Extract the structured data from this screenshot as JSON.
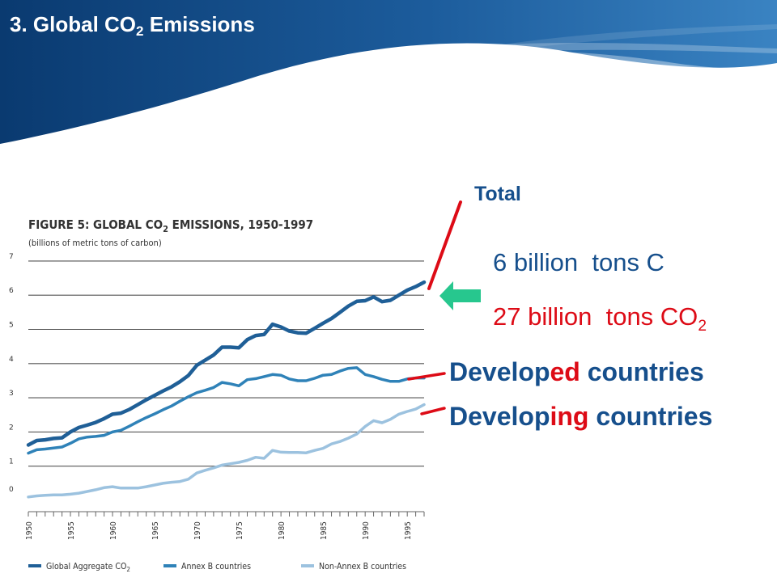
{
  "slide": {
    "title_prefix": "3. Global CO",
    "title_sub": "2",
    "title_suffix": " Emissions"
  },
  "colors": {
    "banner_dark": "#0b3f78",
    "banner_mid": "#2a6fae",
    "highlight_red": "#dd0b16",
    "label_blue": "#164f8c",
    "arrow_green": "#27c78e",
    "series_aggregate": "#1f5f97",
    "series_annex_b": "#2f82b8",
    "series_non_annex_b": "#9cc2df"
  },
  "annotations": {
    "total": "Total",
    "tons_c": "6 billion  tons C",
    "tons_co2_prefix": "27 billion  tons CO",
    "tons_co2_sub": "2",
    "developed_a": "Develop",
    "developed_b": "ed",
    "developed_c": " countries",
    "developing_a": "Develop",
    "developing_b": "ing",
    "developing_c": " countries",
    "arrow_icon": "left-arrow-icon"
  },
  "chart_data": {
    "type": "line",
    "title_prefix": "FIGURE 5: GLOBAL CO",
    "title_sub": "2",
    "title_suffix": " EMISSIONS, 1950-1997",
    "subtitle": "(billions of metric tons of carbon)",
    "xlabel": "",
    "ylabel": "",
    "xlim": [
      1950,
      1997
    ],
    "ylim": [
      0,
      7
    ],
    "yticks": [
      "0",
      "1",
      "2",
      "3",
      "4",
      "5",
      "6",
      "7"
    ],
    "xticks": [
      "1950",
      "1955",
      "1960",
      "1965",
      "1970",
      "1975",
      "1980",
      "1985",
      "1990",
      "1995"
    ],
    "grid": true,
    "legend_position": "bottom",
    "legend": [
      {
        "label_prefix": "Global Aggregate CO",
        "label_sub": "2",
        "series": 0
      },
      {
        "label_prefix": "Annex B countries",
        "label_sub": "",
        "series": 1
      },
      {
        "label_prefix": "Non-Annex B countries",
        "label_sub": "",
        "series": 2
      }
    ],
    "x": [
      1950,
      1951,
      1952,
      1953,
      1954,
      1955,
      1956,
      1957,
      1958,
      1959,
      1960,
      1961,
      1962,
      1963,
      1964,
      1965,
      1966,
      1967,
      1968,
      1969,
      1970,
      1971,
      1972,
      1973,
      1974,
      1975,
      1976,
      1977,
      1978,
      1979,
      1980,
      1981,
      1982,
      1983,
      1984,
      1985,
      1986,
      1987,
      1988,
      1989,
      1990,
      1991,
      1992,
      1993,
      1994,
      1995,
      1996,
      1997
    ],
    "series": [
      {
        "name": "Global Aggregate CO2",
        "values": [
          1.62,
          1.75,
          1.77,
          1.81,
          1.83,
          2.0,
          2.13,
          2.2,
          2.28,
          2.39,
          2.52,
          2.55,
          2.66,
          2.8,
          2.94,
          3.07,
          3.2,
          3.32,
          3.47,
          3.65,
          3.95,
          4.1,
          4.25,
          4.48,
          4.48,
          4.46,
          4.7,
          4.82,
          4.85,
          5.15,
          5.07,
          4.95,
          4.9,
          4.89,
          5.03,
          5.18,
          5.32,
          5.5,
          5.68,
          5.82,
          5.84,
          5.95,
          5.81,
          5.85,
          6.0,
          6.15,
          6.25,
          6.38
        ]
      },
      {
        "name": "Annex B countries",
        "values": [
          1.38,
          1.48,
          1.5,
          1.53,
          1.56,
          1.67,
          1.8,
          1.85,
          1.87,
          1.9,
          2.0,
          2.05,
          2.17,
          2.3,
          2.42,
          2.53,
          2.65,
          2.76,
          2.9,
          3.03,
          3.15,
          3.22,
          3.3,
          3.45,
          3.41,
          3.35,
          3.53,
          3.56,
          3.62,
          3.68,
          3.66,
          3.55,
          3.5,
          3.5,
          3.57,
          3.66,
          3.68,
          3.78,
          3.86,
          3.88,
          3.68,
          3.62,
          3.54,
          3.48,
          3.48,
          3.55,
          3.58,
          3.58
        ]
      },
      {
        "name": "Non-Annex B countries",
        "values": [
          0.1,
          0.13,
          0.15,
          0.16,
          0.16,
          0.18,
          0.21,
          0.26,
          0.31,
          0.37,
          0.4,
          0.36,
          0.36,
          0.36,
          0.4,
          0.45,
          0.5,
          0.53,
          0.55,
          0.62,
          0.8,
          0.88,
          0.95,
          1.03,
          1.07,
          1.11,
          1.17,
          1.26,
          1.23,
          1.46,
          1.41,
          1.4,
          1.4,
          1.39,
          1.46,
          1.52,
          1.65,
          1.72,
          1.82,
          1.94,
          2.16,
          2.33,
          2.27,
          2.37,
          2.52,
          2.6,
          2.67,
          2.8
        ]
      }
    ]
  }
}
